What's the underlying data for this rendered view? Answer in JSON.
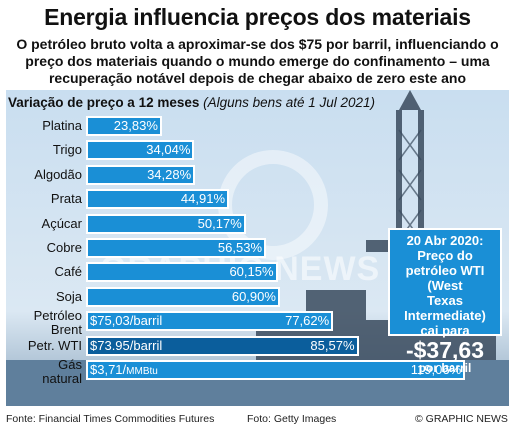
{
  "header": {
    "title": "Energia influencia preços dos materiais",
    "subtitle": "O petróleo bruto volta a aproximar-se dos $75 por barril, influenciando o preço dos materiais quando o mundo emerge do confinamento – uma recuperação notável depois de chegar abaixo de zero este ano"
  },
  "chart_data": {
    "type": "bar",
    "title": "Variação de preço a 12 meses",
    "note": "(Alguns bens até 1 Jul 2021)",
    "categories": [
      "Platina",
      "Trigo",
      "Algodão",
      "Prata",
      "Açúcar",
      "Cobre",
      "Café",
      "Soja",
      "Petróleo Brent",
      "Petr. WTI",
      "Gás natural"
    ],
    "values": [
      23.83,
      34.04,
      34.28,
      44.91,
      50.17,
      56.53,
      60.15,
      60.9,
      77.62,
      85.57,
      119.06
    ],
    "value_labels": [
      "23,83%",
      "34,04%",
      "34,28%",
      "44,91%",
      "50,17%",
      "56,53%",
      "60,15%",
      "60,90%",
      "77,62%",
      "85,57%",
      "119,06%"
    ],
    "price_labels": [
      "",
      "",
      "",
      "",
      "",
      "",
      "",
      "",
      "$75,03/barril",
      "$73.95/barril",
      "$3,71/"
    ],
    "price_units": [
      "",
      "",
      "",
      "",
      "",
      "",
      "",
      "",
      "",
      "",
      "MMBtu"
    ],
    "xlim": [
      0,
      130
    ],
    "bar_color": "#1a8fd6",
    "highlight_color": "#0b5e9c"
  },
  "callout": {
    "line1": "20 Abr 2020:",
    "line2": "Preço do",
    "line3": "petróleo WTI (West",
    "line4": "Texas Intermediate)",
    "line5": "cai para",
    "value": "-$37,63",
    "unit": "por barril"
  },
  "watermark": "GRAPHIC NEWS",
  "footer": {
    "source": "Fonte: Financial Times Commodities Futures",
    "photo": "Foto: Getty Images",
    "credit": "© GRAPHIC NEWS"
  }
}
